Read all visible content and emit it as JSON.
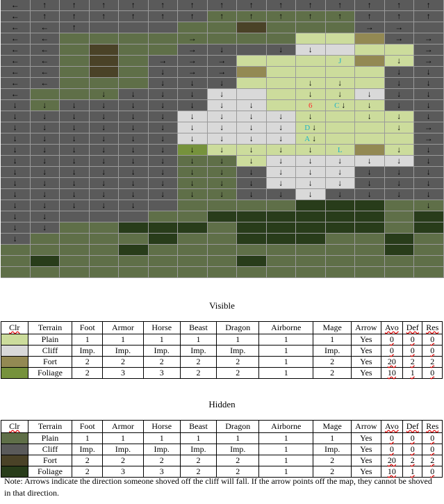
{
  "palette": {
    "P": "#ccdc9c",
    "C": "#d9d9d9",
    "F": "#938953",
    "G": "#76923c",
    "p": "#5f6f48",
    "c": "#5a5a5a",
    "f": "#4a4227",
    "g": "#283c1a"
  },
  "map": {
    "terrain": [
      "ccccccccccccccc",
      "cccccccpppppccc",
      "ccccccppfpppccc",
      "ccppppppppPPFcc",
      "ccpfppccccCCPPc",
      "ccpfpcccPPPPFPc",
      "ccpfpcccFPPPPcc",
      "ccpppcccPPPPPcc",
      "cpppcccCCPPPCcc",
      "cpcccccCCPPPPcc",
      "ccccccCCCCPPPPc",
      "ccccccCCCCPPPPc",
      "ccccccCCCCPPPPc",
      "ccccccGPPPPPFPc",
      "ccccccppPCCCCCc",
      "ccccccppcCCCccc",
      "ccccccppcCCCccc",
      "ccccccppccCcccc",
      "ccccccppppgggpp",
      "cccccppggggggpg",
      "ccppgggpgggggpg",
      "cppppgppgggppgp",
      "ppppgppppppppgp",
      "pgppppppgpppppp",
      "ppppppppppppppp"
    ],
    "arrows": [
      "←↑↑↑↑↑↑↑↑↑↑↑↑↑↑",
      "←↑↑↑↑↑↑↑↑↑↑↑↑↑↑",
      "←←↑         →→",
      "←←    →      →→",
      "←←    →↓ ↓↓   →",
      "←←   →→→     ↓→",
      "←←   ↓→→     ↓↓",
      "←←   ↓↓↓  ↓↓ ↓↓",
      "←  ↓↓↓↓↓  ↓↓↓↓↓",
      "↓↓↓↓↓↓↓↓↓  ↓↓↓↓",
      "↓↓↓↓↓↓↓↓↓↓↓ ↓↓↓",
      "↓↓↓↓↓↓↓↓↓↓↓  ↓→",
      "↓↓↓↓↓↓↓↓↓↓↓   →",
      "↓↓↓↓↓↓↓↓↓↓↓  ↓↓",
      "↓↓↓↓↓↓↓↓↓↓↓↓↓↓↓",
      "↓↓↓↓↓↓↓↓↓↓↓↓↓↓↓",
      "↓↓↓↓↓↓↓↓↓↓↓↓↓↓↓",
      "↓↓↓↓↓↓↓↓↓↓↓↓↓↓↓",
      "↓↓↓↓↓         ↓",
      "↓↓              ",
      "↓↓              ",
      "↓               ",
      "                ",
      "                ",
      "                "
    ],
    "labels": [
      {
        "row": 5,
        "col": 11,
        "text": "J",
        "color": "#1fb3c6"
      },
      {
        "row": 9,
        "col": 10,
        "text": "6",
        "color": "#ff2a2a"
      },
      {
        "row": 9,
        "col": 11,
        "text": "C",
        "color": "#1fb3c6"
      },
      {
        "row": 11,
        "col": 10,
        "text": "D",
        "color": "#1fb3c6"
      },
      {
        "row": 12,
        "col": 10,
        "text": "A",
        "color": "#1fb3c6"
      },
      {
        "row": 13,
        "col": 11,
        "text": "L",
        "color": "#1fb3c6"
      }
    ]
  },
  "visible": {
    "title": "Visible",
    "headers": [
      "Clr",
      "Terrain",
      "Foot",
      "Armor",
      "Horse",
      "Beast",
      "Dragon",
      "Airborne",
      "Mage",
      "Arrow",
      "Avo",
      "Def",
      "Res"
    ],
    "rows": [
      {
        "color": "#ccdc9c",
        "cells": [
          "Plain",
          "1",
          "1",
          "1",
          "1",
          "1",
          "1",
          "1",
          "Yes",
          "0",
          "0",
          "0"
        ]
      },
      {
        "color": "#d9d9d9",
        "cells": [
          "Cliff",
          "Imp.",
          "Imp.",
          "Imp.",
          "Imp.",
          "Imp.",
          "1",
          "Imp.",
          "Yes",
          "0",
          "0",
          "0"
        ]
      },
      {
        "color": "#938953",
        "cells": [
          "Fort",
          "2",
          "2",
          "2",
          "2",
          "2",
          "1",
          "2",
          "Yes",
          "20",
          "2",
          "2"
        ]
      },
      {
        "color": "#76923c",
        "cells": [
          "Foliage",
          "2",
          "3",
          "3",
          "2",
          "2",
          "1",
          "2",
          "Yes",
          "10",
          "1",
          "0"
        ]
      }
    ]
  },
  "hidden": {
    "title": "Hidden",
    "headers": [
      "Clr",
      "Terrain",
      "Foot",
      "Armor",
      "Horse",
      "Beast",
      "Dragon",
      "Airborne",
      "Mage",
      "Arrow",
      "Avo",
      "Def",
      "Res"
    ],
    "rows": [
      {
        "color": "#5f6f48",
        "cells": [
          "Plain",
          "1",
          "1",
          "1",
          "1",
          "1",
          "1",
          "1",
          "Yes",
          "0",
          "0",
          "0"
        ]
      },
      {
        "color": "#5a5a5a",
        "cells": [
          "Cliff",
          "Imp.",
          "Imp.",
          "Imp.",
          "Imp.",
          "Imp.",
          "1",
          "Imp.",
          "Yes",
          "0",
          "0",
          "0"
        ]
      },
      {
        "color": "#4a4227",
        "cells": [
          "Fort",
          "2",
          "2",
          "2",
          "2",
          "2",
          "1",
          "2",
          "Yes",
          "20",
          "2",
          "2"
        ]
      },
      {
        "color": "#283c1a",
        "cells": [
          "Foliage",
          "2",
          "3",
          "3",
          "2",
          "2",
          "1",
          "2",
          "Yes",
          "10",
          "1",
          "0"
        ]
      }
    ]
  },
  "note": "Note: Arrows indicate the direction someone shoved off the cliff will fall.  If the arrow points off the map, they cannot be shoved in that direction."
}
